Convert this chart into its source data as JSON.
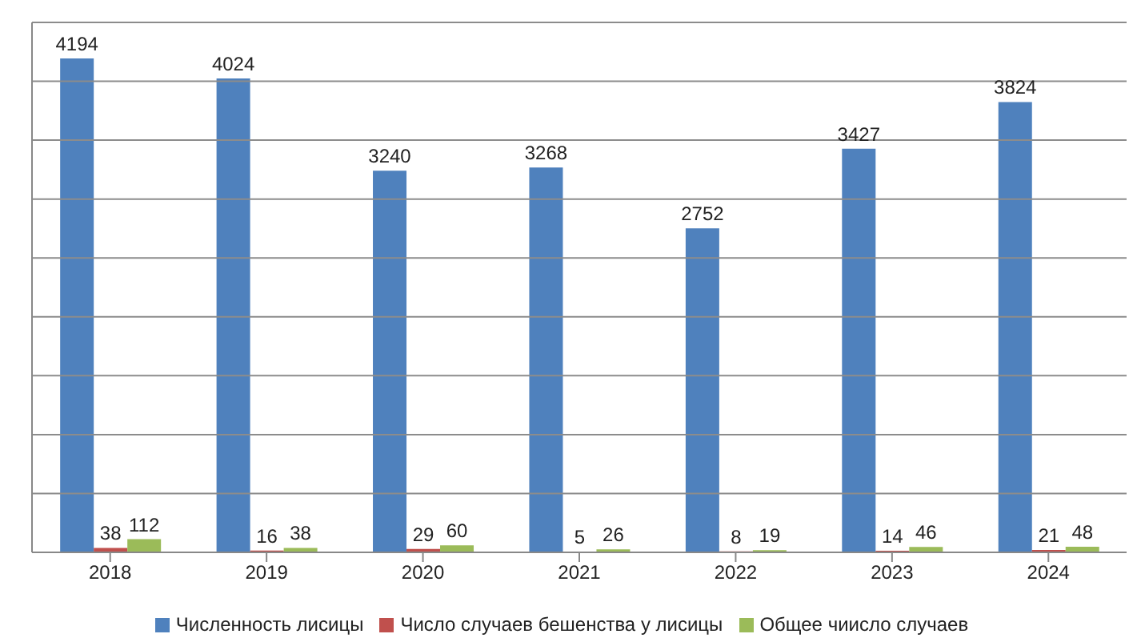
{
  "chart_data": {
    "type": "bar",
    "categories": [
      "2018",
      "2019",
      "2020",
      "2021",
      "2022",
      "2023",
      "2024"
    ],
    "series": [
      {
        "name": "Численность лисицы",
        "color": "#4f81bd",
        "values": [
          4194,
          4024,
          3240,
          3268,
          2752,
          3427,
          3824
        ]
      },
      {
        "name": "Число случаев бешенства у лисицы",
        "color": "#c0504d",
        "values": [
          38,
          16,
          29,
          5,
          8,
          14,
          21
        ]
      },
      {
        "name": "Общее чиисло случаев",
        "color": "#9bbb59",
        "values": [
          112,
          38,
          60,
          26,
          19,
          46,
          48
        ]
      }
    ],
    "ylim": [
      0,
      4500
    ],
    "yticks": [
      {
        "value": 500,
        "label": null
      },
      {
        "value": 1000,
        "label": null
      },
      {
        "value": 1500,
        "label": null
      },
      {
        "value": 2000,
        "label": null
      },
      {
        "value": 2500,
        "label": null
      },
      {
        "value": 3000,
        "label": null
      },
      {
        "value": 3500,
        "label": null
      },
      {
        "value": 4000,
        "label": null
      },
      {
        "value": 4500,
        "label": null
      }
    ],
    "tick_labels": "x",
    "grid": "y",
    "legend": "bottom",
    "data_labels": true
  }
}
